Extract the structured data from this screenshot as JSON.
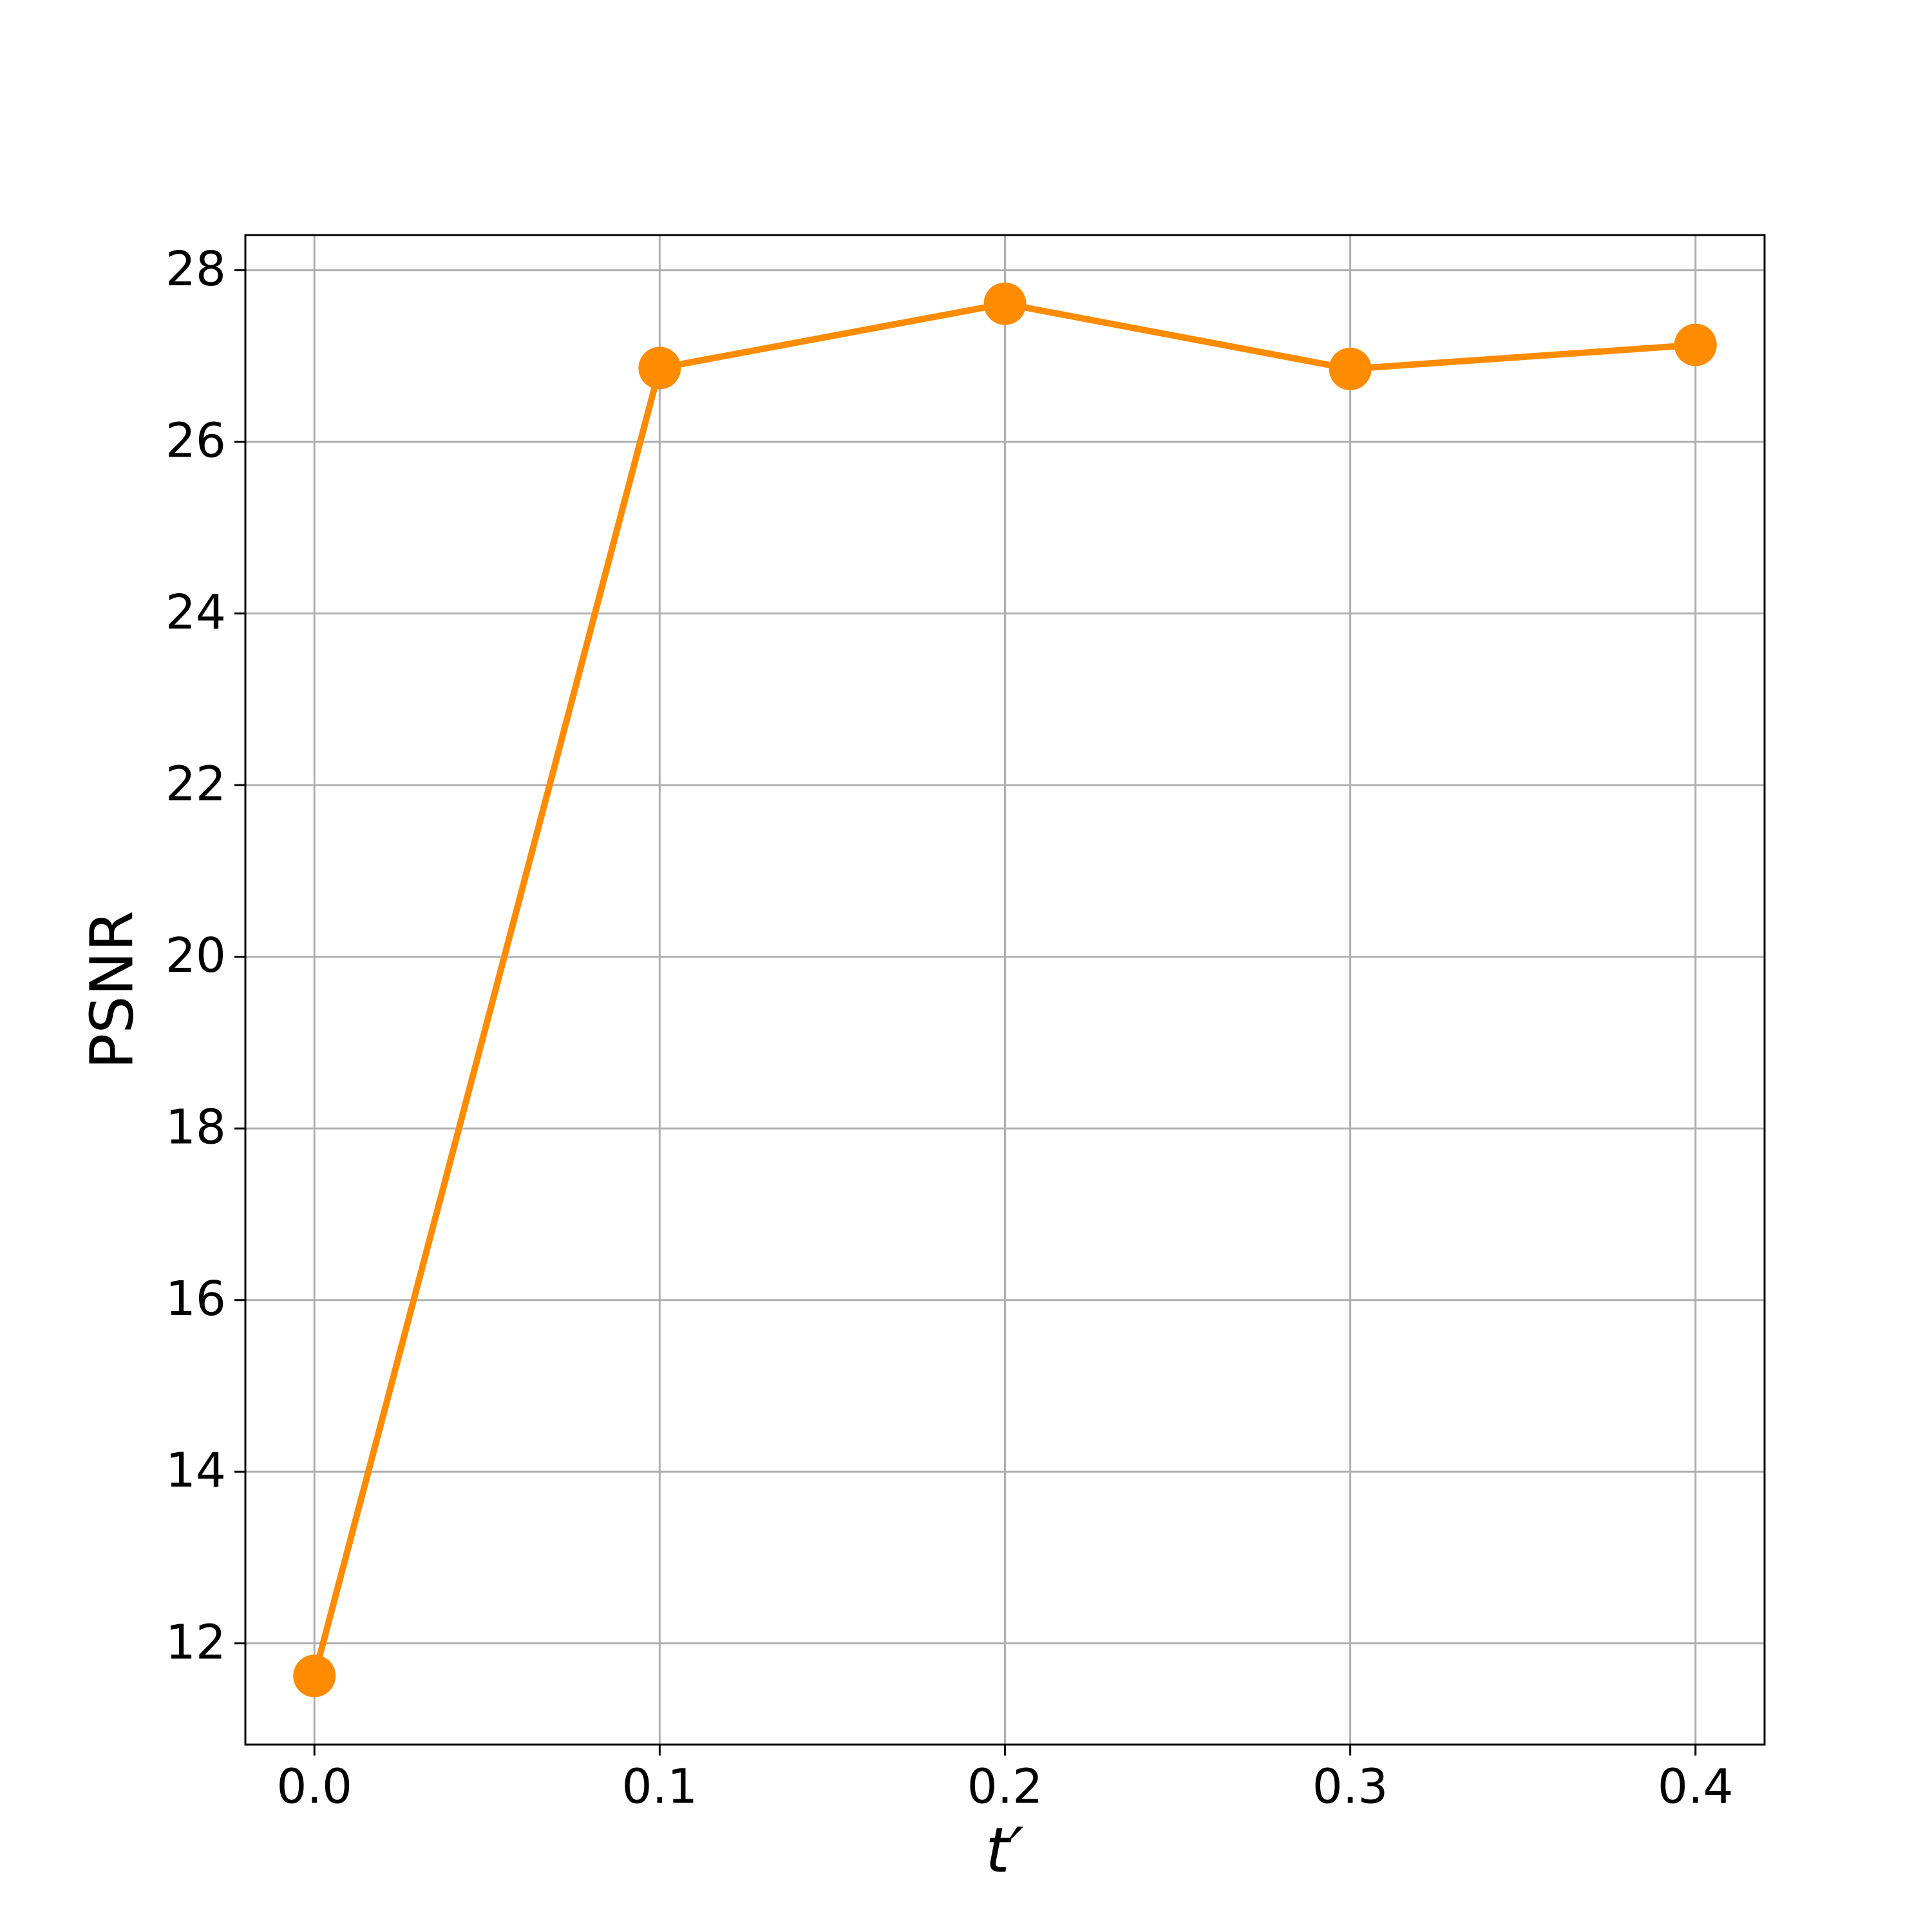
{
  "chart_data": {
    "type": "line",
    "xlabel": "t′",
    "ylabel": "PSNR",
    "x": [
      0.0,
      0.1,
      0.2,
      0.3,
      0.4
    ],
    "values": [
      11.62,
      26.86,
      27.61,
      26.85,
      27.13
    ],
    "color": "#ff8c00",
    "xlim": [
      -0.02,
      0.42
    ],
    "ylim": [
      10.82,
      28.41
    ],
    "xticks": [
      {
        "value": 0,
        "label": "0.0"
      },
      0.1,
      0.2,
      0.3,
      0.4
    ],
    "yticks": [
      12,
      14,
      16,
      18,
      20,
      22,
      24,
      26,
      28
    ],
    "grid": true,
    "markers": true
  }
}
